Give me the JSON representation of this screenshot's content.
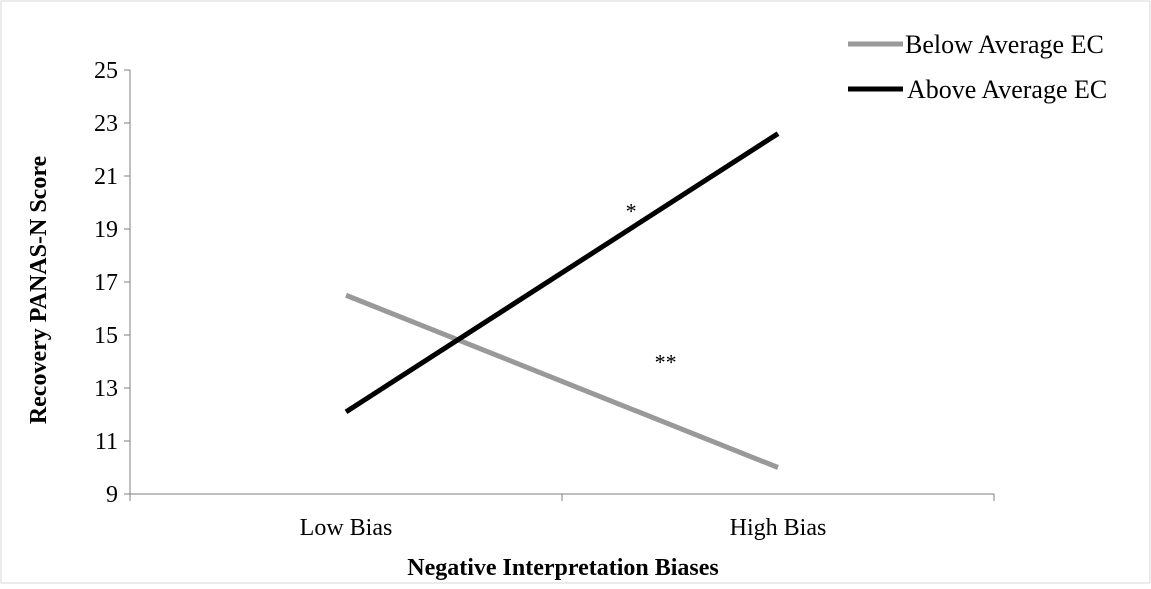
{
  "chart_data": {
    "type": "line",
    "title": "",
    "xlabel": "Negative Interpretation Biases",
    "ylabel": "Recovery PANAS-N Score",
    "categories": [
      "Low Bias",
      "High Bias"
    ],
    "ylim": [
      9,
      25
    ],
    "yticks": [
      9,
      11,
      13,
      15,
      17,
      19,
      21,
      23,
      25
    ],
    "grid": false,
    "legend_position": "top-right",
    "series": [
      {
        "name": "Below Average EC",
        "values": [
          16.5,
          10.0
        ],
        "color": "#999999"
      },
      {
        "name": "Above Average EC",
        "values": [
          12.1,
          22.6
        ],
        "color": "#000000"
      }
    ],
    "annotations": [
      {
        "text": "*",
        "series": "Above Average EC",
        "x": 0.58,
        "y": 19.4
      },
      {
        "text": "**",
        "series": "Below Average EC",
        "x": 0.62,
        "y": 13.7
      }
    ]
  }
}
